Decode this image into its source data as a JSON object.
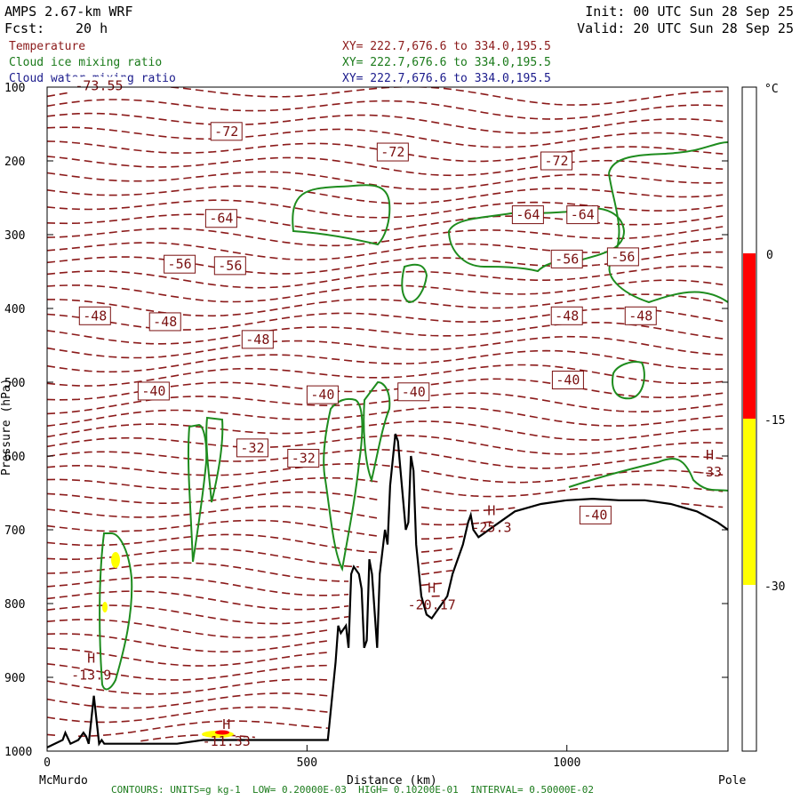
{
  "header": {
    "model": "AMPS 2.67-km WRF",
    "fcst_label": "Fcst:",
    "fcst_value": "20 h",
    "init": "Init: 00 UTC Sun 28 Sep 25",
    "valid": "Valid: 20 UTC Sun 28 Sep 25"
  },
  "legend": [
    {
      "name": "Temperature",
      "xy": "XY= 222.7,676.6 to 334.0,195.5",
      "color": "#8b1a1a"
    },
    {
      "name": "Cloud ice mixing ratio",
      "xy": "XY= 222.7,676.6 to 334.0,195.5",
      "color": "#1a7a1a"
    },
    {
      "name": "Cloud water mixing ratio",
      "xy": "XY= 222.7,676.6 to 334.0,195.5",
      "color": "#1a1a8b"
    }
  ],
  "footer": "CONTOURS: UNITS=g kg-1  LOW= 0.20000E-03  HIGH= 0.10200E-01  INTERVAL= 0.50000E-02",
  "chart_data": {
    "type": "contour-cross-section",
    "xlabel": "Distance (km)",
    "ylabel": "Pressure (hPa)",
    "xlim": [
      0,
      1310
    ],
    "ylim": [
      1000,
      100
    ],
    "x_ticks": [
      0,
      500,
      1000
    ],
    "y_ticks": [
      100,
      200,
      300,
      400,
      500,
      600,
      700,
      800,
      900,
      1000
    ],
    "x_endpoints": [
      "McMurdo",
      "Pole"
    ],
    "colorbar": {
      "unit": "°C",
      "ticks": [
        0,
        -15,
        -30
      ],
      "bands": [
        {
          "from": 0,
          "to": -15,
          "color": "#ff0000"
        },
        {
          "from": -15,
          "to": -30,
          "color": "#ffff00"
        }
      ]
    },
    "temperature_labels": [
      {
        "x": 100,
        "p": 98,
        "text": "-73.55"
      },
      {
        "x": 345,
        "p": 160,
        "text": "-72"
      },
      {
        "x": 665,
        "p": 188,
        "text": "-72"
      },
      {
        "x": 980,
        "p": 200,
        "text": "-72"
      },
      {
        "x": 335,
        "p": 278,
        "text": "-64"
      },
      {
        "x": 925,
        "p": 273,
        "text": "-64"
      },
      {
        "x": 1030,
        "p": 273,
        "text": "-64"
      },
      {
        "x": 255,
        "p": 340,
        "text": "-56"
      },
      {
        "x": 352,
        "p": 342,
        "text": "-56"
      },
      {
        "x": 1000,
        "p": 333,
        "text": "-56"
      },
      {
        "x": 1108,
        "p": 330,
        "text": "-56"
      },
      {
        "x": 92,
        "p": 410,
        "text": "-48"
      },
      {
        "x": 227,
        "p": 418,
        "text": "-48"
      },
      {
        "x": 405,
        "p": 442,
        "text": "-48"
      },
      {
        "x": 1000,
        "p": 410,
        "text": "-48"
      },
      {
        "x": 1142,
        "p": 410,
        "text": "-48"
      },
      {
        "x": 205,
        "p": 512,
        "text": "-40"
      },
      {
        "x": 530,
        "p": 517,
        "text": "-40"
      },
      {
        "x": 705,
        "p": 513,
        "text": "-40"
      },
      {
        "x": 1002,
        "p": 497,
        "text": "-40"
      },
      {
        "x": 395,
        "p": 589,
        "text": "-32"
      },
      {
        "x": 493,
        "p": 603,
        "text": "-32"
      },
      {
        "x": 1055,
        "p": 680,
        "text": "-40"
      }
    ],
    "extrema": [
      {
        "symbol": "H",
        "x": 85,
        "p": 880,
        "value": "-13.9"
      },
      {
        "symbol": "H",
        "x": 345,
        "p": 970,
        "value": "-11.33"
      },
      {
        "symbol": "H",
        "x": 740,
        "p": 785,
        "value": "-20.17"
      },
      {
        "symbol": "H",
        "x": 855,
        "p": 680,
        "value": "-25.3"
      },
      {
        "symbol": "H",
        "x": 1275,
        "p": 605,
        "value": "-33"
      }
    ],
    "terrain_profile": {
      "x": [
        0,
        30,
        35,
        45,
        60,
        70,
        75,
        80,
        90,
        100,
        105,
        110,
        150,
        250,
        300,
        350,
        400,
        450,
        500,
        540,
        555,
        560,
        565,
        575,
        580,
        585,
        590,
        600,
        605,
        610,
        615,
        620,
        625,
        635,
        640,
        650,
        655,
        660,
        670,
        675,
        680,
        690,
        695,
        700,
        705,
        710,
        720,
        730,
        740,
        750,
        760,
        770,
        780,
        790,
        800,
        810,
        815,
        820,
        830,
        840,
        850,
        860,
        900,
        950,
        1000,
        1050,
        1100,
        1150,
        1200,
        1250,
        1290,
        1310
      ],
      "p": [
        995,
        985,
        975,
        990,
        985,
        975,
        980,
        990,
        925,
        990,
        985,
        990,
        990,
        990,
        985,
        985,
        985,
        985,
        985,
        985,
        880,
        830,
        840,
        830,
        860,
        760,
        750,
        760,
        780,
        860,
        850,
        740,
        760,
        860,
        760,
        700,
        720,
        640,
        570,
        580,
        620,
        700,
        690,
        600,
        620,
        720,
        790,
        815,
        820,
        810,
        800,
        790,
        760,
        740,
        720,
        690,
        680,
        700,
        710,
        705,
        700,
        695,
        675,
        665,
        660,
        658,
        660,
        660,
        665,
        675,
        690,
        700
      ]
    }
  }
}
